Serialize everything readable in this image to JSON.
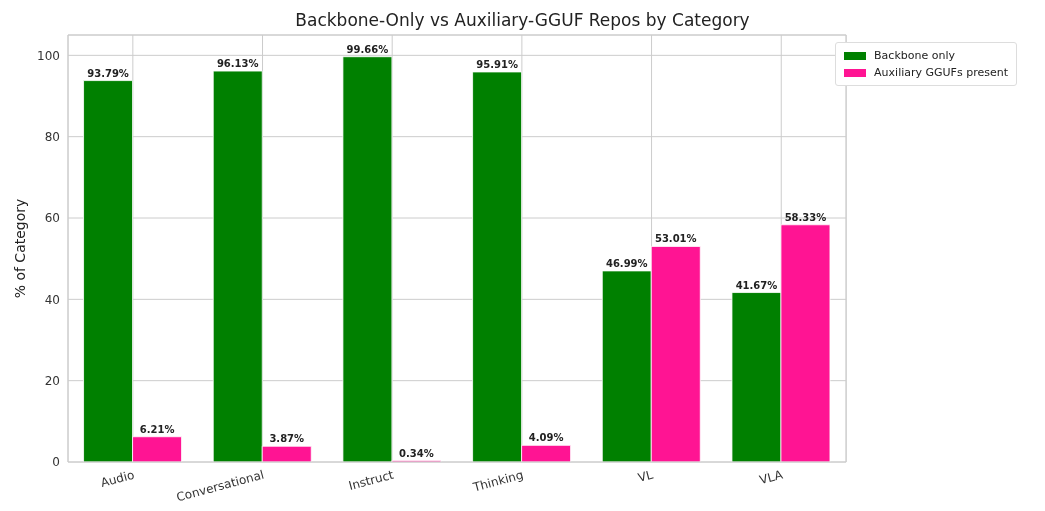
{
  "chart_data": {
    "type": "bar",
    "title": "Backbone-Only vs Auxiliary-GGUF Repos by Category",
    "ylabel": "% of Category",
    "categories": [
      "Audio",
      "Conversational",
      "Instruct",
      "Thinking",
      "VL",
      "VLA"
    ],
    "series": [
      {
        "name": "Backbone only",
        "color": "#008000",
        "values": [
          93.79,
          96.13,
          99.66,
          95.91,
          46.99,
          41.67
        ],
        "value_labels": [
          "93.79%",
          "96.13%",
          "99.66%",
          "95.91%",
          "46.99%",
          "41.67%"
        ]
      },
      {
        "name": "Auxiliary GGUFs present",
        "color": "#ff1493",
        "values": [
          6.21,
          3.87,
          0.34,
          4.09,
          53.01,
          58.33
        ],
        "value_labels": [
          "6.21%",
          "3.87%",
          "0.34%",
          "4.09%",
          "53.01%",
          "58.33%"
        ]
      }
    ],
    "ylim": [
      0,
      105
    ],
    "yticks": [
      0,
      20,
      40,
      60,
      80,
      100
    ],
    "grid": true,
    "legend": "top right"
  }
}
